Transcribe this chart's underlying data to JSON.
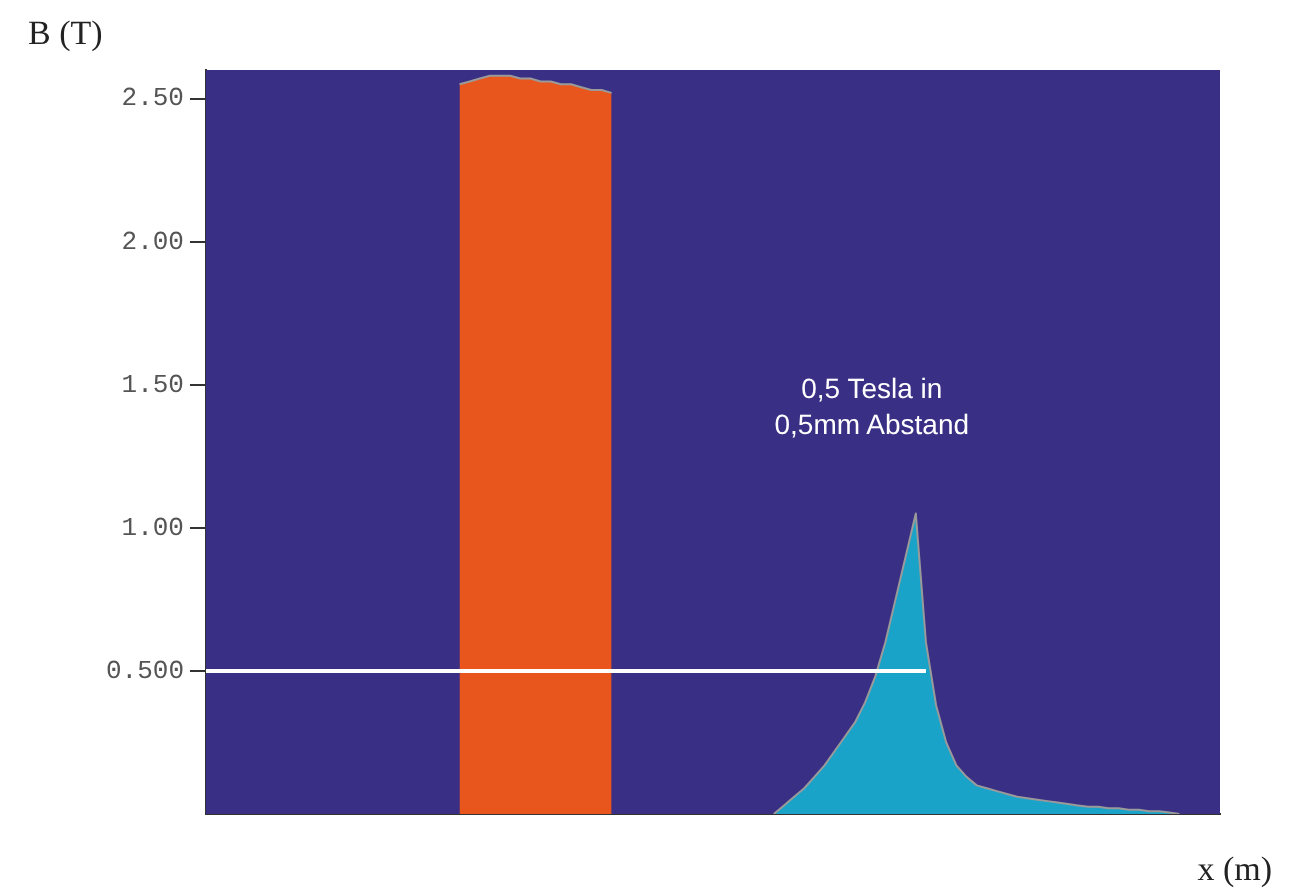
{
  "chart_data": {
    "type": "area",
    "xlabel": "x (m)",
    "ylabel": "B (T)",
    "categories": [
      null,
      null,
      null,
      null,
      null,
      null,
      null,
      null,
      null,
      null,
      null,
      null,
      null,
      null,
      null,
      null,
      null,
      null,
      null,
      null,
      null,
      null,
      null,
      null,
      null,
      null,
      null,
      null,
      null,
      null,
      null,
      null,
      null,
      null,
      null,
      null,
      null,
      null,
      null,
      null,
      null,
      null,
      null,
      null,
      null,
      null,
      null,
      null,
      null,
      null,
      null,
      null,
      null,
      null,
      null,
      null,
      null,
      null,
      null,
      null,
      null,
      null,
      null,
      null,
      null,
      null,
      null,
      null,
      null,
      null,
      null,
      null,
      null,
      null,
      null,
      null,
      null,
      null,
      null,
      null,
      null,
      null,
      null,
      null,
      null,
      null,
      null,
      null,
      null,
      null,
      null,
      null,
      null,
      null,
      null,
      null,
      null,
      null,
      null,
      null,
      null
    ],
    "series": [
      {
        "color": "#e8561e",
        "values": [
          null,
          null,
          null,
          null,
          null,
          null,
          null,
          null,
          null,
          null,
          null,
          null,
          null,
          null,
          null,
          null,
          null,
          null,
          null,
          null,
          null,
          null,
          null,
          null,
          null,
          2.55,
          2.56,
          2.57,
          2.58,
          2.58,
          2.58,
          2.57,
          2.57,
          2.56,
          2.56,
          2.55,
          2.55,
          2.54,
          2.53,
          2.53,
          2.52,
          null,
          null,
          null,
          null,
          null,
          null,
          null,
          null,
          null,
          null,
          null,
          null,
          null,
          null,
          null,
          null,
          null,
          null,
          null,
          null,
          null,
          null,
          null,
          null,
          null,
          null,
          null,
          null,
          null,
          null,
          null,
          null,
          null,
          null,
          null,
          null,
          null,
          null,
          null,
          null,
          null,
          null,
          null,
          null,
          null,
          null,
          null,
          null,
          null,
          null,
          null,
          null,
          null,
          null,
          null,
          null,
          null,
          null,
          null,
          null
        ]
      },
      {
        "color": "#1aa3c8",
        "values": [
          null,
          null,
          null,
          null,
          null,
          null,
          null,
          null,
          null,
          null,
          null,
          null,
          null,
          null,
          null,
          null,
          null,
          null,
          null,
          null,
          null,
          null,
          null,
          null,
          null,
          null,
          null,
          null,
          null,
          null,
          null,
          null,
          null,
          null,
          null,
          null,
          null,
          null,
          null,
          null,
          null,
          null,
          null,
          null,
          null,
          null,
          null,
          null,
          null,
          null,
          null,
          null,
          null,
          null,
          null,
          null,
          0,
          0.03,
          0.06,
          0.09,
          0.13,
          0.17,
          0.22,
          0.27,
          0.32,
          0.39,
          0.48,
          0.6,
          0.75,
          0.9,
          1.05,
          0.6,
          0.38,
          0.25,
          0.17,
          0.13,
          0.1,
          0.09,
          0.08,
          0.07,
          0.06,
          0.055,
          0.05,
          0.045,
          0.04,
          0.035,
          0.03,
          0.025,
          0.025,
          0.02,
          0.02,
          0.015,
          0.015,
          0.01,
          0.01,
          0.005,
          0,
          null,
          null,
          null,
          null
        ]
      },
      {
        "type": "line",
        "color": "#ffffff",
        "values": [
          0.5,
          0.5,
          0.5,
          0.5,
          0.5,
          0.5,
          0.5,
          0.5,
          0.5,
          0.5,
          0.5,
          0.5,
          0.5,
          0.5,
          0.5,
          0.5,
          0.5,
          0.5,
          0.5,
          0.5,
          0.5,
          0.5,
          0.5,
          0.5,
          0.5,
          0.5,
          0.5,
          0.5,
          0.5,
          0.5,
          0.5,
          0.5,
          0.5,
          0.5,
          0.5,
          0.5,
          0.5,
          0.5,
          0.5,
          0.5,
          0.5,
          0.5,
          0.5,
          0.5,
          0.5,
          0.5,
          0.5,
          0.5,
          0.5,
          0.5,
          0.5,
          0.5,
          0.5,
          0.5,
          0.5,
          0.5,
          0.5,
          0.5,
          0.5,
          0.5,
          0.5,
          0.5,
          0.5,
          0.5,
          0.5,
          0.5,
          0.5,
          0.5,
          0.5,
          0.5,
          0.5,
          0.5,
          null,
          null,
          null,
          null,
          null,
          null,
          null,
          null,
          null,
          null,
          null,
          null,
          null,
          null,
          null,
          null,
          null,
          null,
          null,
          null,
          null,
          null,
          null,
          null,
          null,
          null,
          null,
          null,
          null
        ]
      }
    ],
    "ylim": [
      0,
      2.6
    ],
    "yticks": [
      {
        "value": 0.5,
        "label": "0.500"
      },
      {
        "value": 1,
        "label": "1.00"
      },
      {
        "value": 1.5,
        "label": "1.50"
      },
      {
        "value": 2,
        "label": "2.00"
      },
      {
        "value": 2.5,
        "label": "2.50"
      }
    ],
    "tick_labels": "y",
    "grid": false,
    "legend": false,
    "marker": "none",
    "line_style": "solid",
    "annotations": [
      "0,5 Tesla in\n0,5mm Abstand"
    ]
  }
}
